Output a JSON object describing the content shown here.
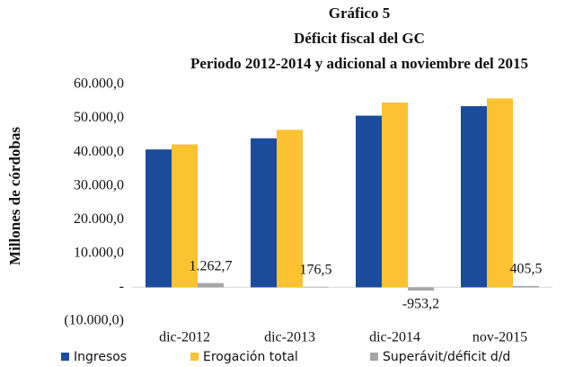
{
  "chart_data": {
    "type": "bar",
    "title": [
      "Gráfico 5",
      "Déficit fiscal del GC",
      "Periodo 2012-2014 y adicional a noviembre del 2015"
    ],
    "y_label": "Millones de córdobas",
    "categories": [
      "dic-2012",
      "dic-2013",
      "dic-2014",
      "nov-2015"
    ],
    "series": [
      {
        "name": "Ingresos",
        "color": "#1b4c9c",
        "values": [
          40800,
          44100,
          50800,
          53600
        ]
      },
      {
        "name": "Erogación total",
        "color": "#fdc232",
        "values": [
          42300,
          46600,
          54700,
          55900
        ]
      },
      {
        "name": "Superávit/déficit d/d",
        "color": "#a5a5a5",
        "values": [
          1262.7,
          176.5,
          -953.2,
          405.5
        ],
        "value_labels": [
          "1.262,7",
          "176,5",
          "-953,2",
          "405,5"
        ]
      }
    ],
    "ylim": [
      -10000,
      60000
    ],
    "yticks": [
      {
        "value": -10000,
        "label": "(10.000,0)"
      },
      {
        "value": 0,
        "label": "-"
      },
      {
        "value": 10000,
        "label": "10.000,0"
      },
      {
        "value": 20000,
        "label": "20.000,0"
      },
      {
        "value": 30000,
        "label": "30.000,0"
      },
      {
        "value": 40000,
        "label": "40.000,0"
      },
      {
        "value": 50000,
        "label": "50.000,0"
      },
      {
        "value": 60000,
        "label": "60.000,0"
      }
    ],
    "legend": "bottom"
  }
}
